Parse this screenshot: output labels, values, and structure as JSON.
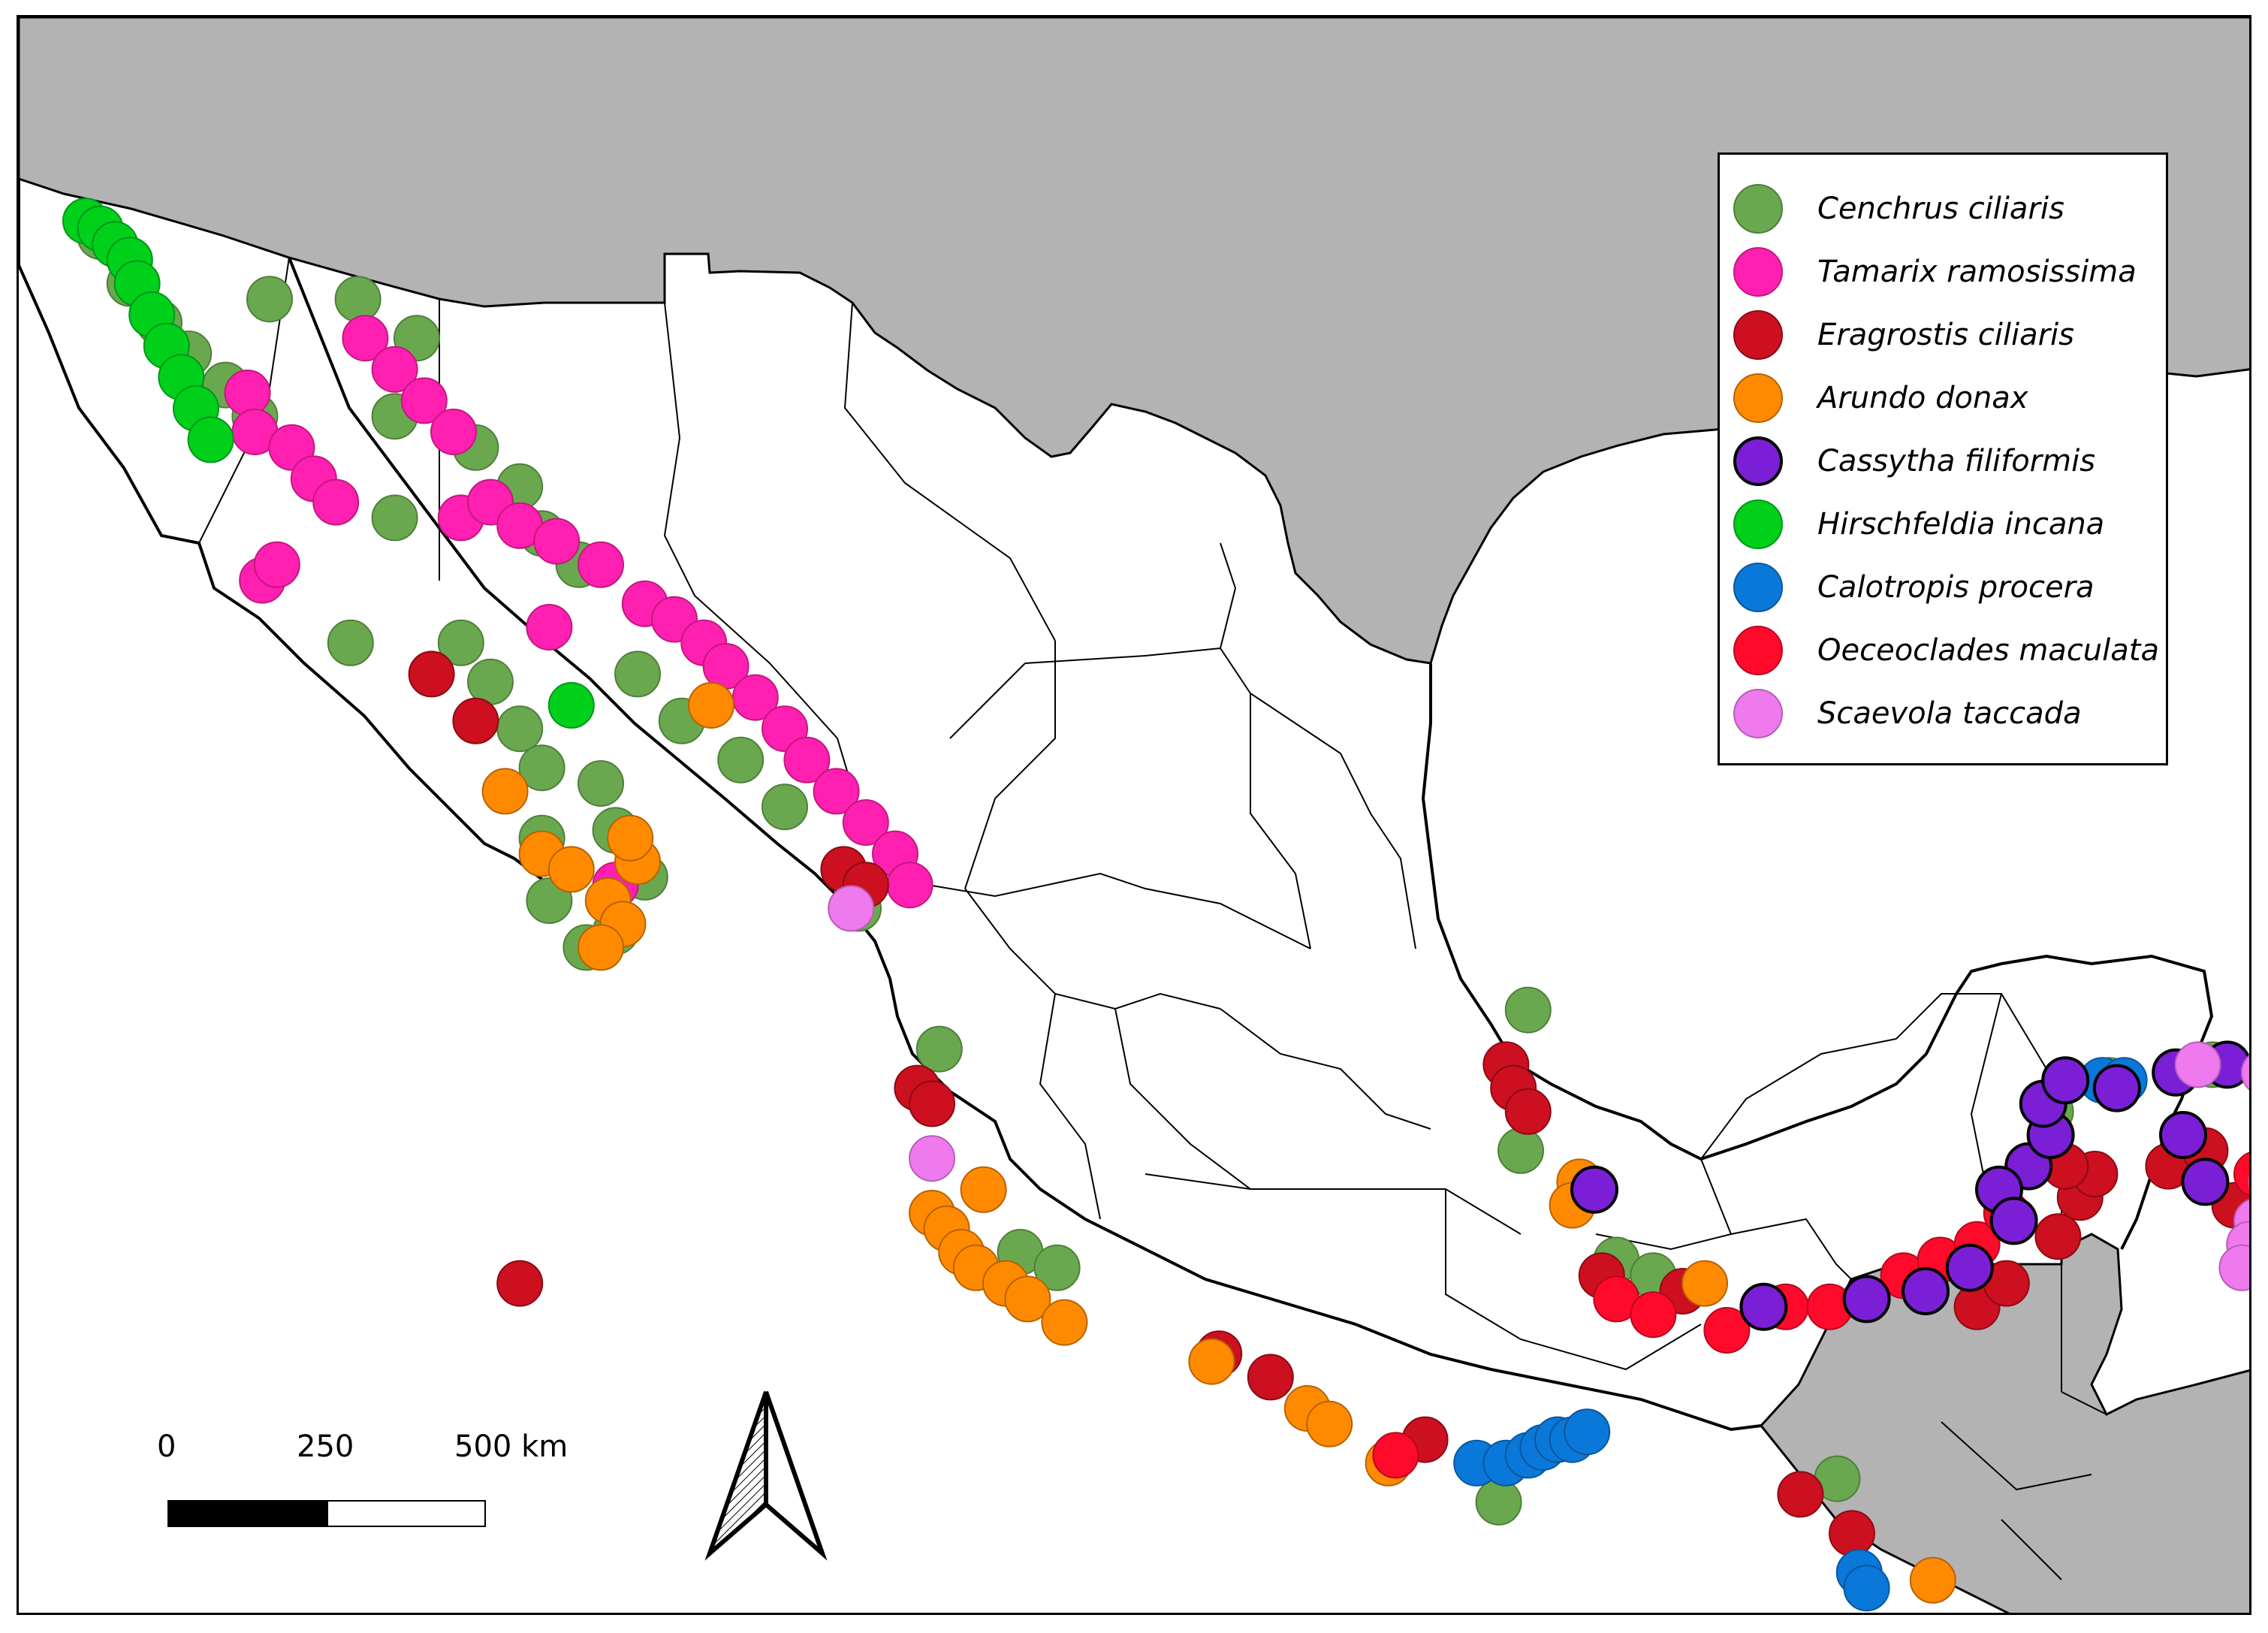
{
  "map": {
    "colors": {
      "land_other": "#b3b3b3",
      "land_mexico": "#ffffff",
      "ocean": "#ffffff",
      "borders": "#000000"
    }
  },
  "legend": {
    "items": [
      {
        "id": "cenchrus",
        "label": "Cenchrus ciliaris",
        "color": "#6aa84f",
        "stroke": "#4f7f3a"
      },
      {
        "id": "tamarix",
        "label": "Tamarix ramosissima",
        "color": "#ff1fb0",
        "stroke": "#c2187f"
      },
      {
        "id": "eragrostis",
        "label": "Eragrostis ciliaris",
        "color": "#cc1020",
        "stroke": "#8c0a14"
      },
      {
        "id": "arundo",
        "label": "Arundo donax",
        "color": "#ff8a00",
        "stroke": "#b86200"
      },
      {
        "id": "cassytha",
        "label": "Cassytha filiformis",
        "color": "#7a1fd6",
        "stroke": "#000000"
      },
      {
        "id": "hirschfeldia",
        "label": "Hirschfeldia incana",
        "color": "#00d01a",
        "stroke": "#00961a"
      },
      {
        "id": "calotropis",
        "label": "Calotropis procera",
        "color": "#0a78d8",
        "stroke": "#0857a0"
      },
      {
        "id": "oeceoclades",
        "label": "Oeceoclades maculata",
        "color": "#ff0a2a",
        "stroke": "#b80820"
      },
      {
        "id": "scaevola",
        "label": "Scaevola taccada",
        "color": "#ee7aee",
        "stroke": "#b85cb8"
      }
    ]
  },
  "scale_bar": {
    "ticks": [
      "0",
      "250",
      "500 km"
    ]
  },
  "north_arrow": {
    "icon": "north-arrow-icon"
  },
  "occurrences": {
    "cenchrus": [
      [
        -116.9,
        32.1
      ],
      [
        -116.5,
        31.5
      ],
      [
        -116.1,
        31.0
      ],
      [
        -115.7,
        30.6
      ],
      [
        -115.2,
        30.2
      ],
      [
        -114.8,
        29.8
      ],
      [
        -114.6,
        31.3
      ],
      [
        -113.4,
        31.3
      ],
      [
        -112.6,
        30.8
      ],
      [
        -112.9,
        29.8
      ],
      [
        -111.8,
        29.4
      ],
      [
        -111.2,
        28.9
      ],
      [
        -110.9,
        28.3
      ],
      [
        -110.4,
        27.9
      ],
      [
        -112.9,
        28.5
      ],
      [
        -113.5,
        26.9
      ],
      [
        -112.0,
        26.9
      ],
      [
        -111.6,
        26.4
      ],
      [
        -111.2,
        25.8
      ],
      [
        -110.9,
        25.3
      ],
      [
        -110.1,
        25.1
      ],
      [
        -109.9,
        24.5
      ],
      [
        -109.5,
        23.9
      ],
      [
        -109.9,
        23.2
      ],
      [
        -110.3,
        23.0
      ],
      [
        -110.8,
        23.6
      ],
      [
        -110.9,
        24.4
      ],
      [
        -109.6,
        26.5
      ],
      [
        -109.0,
        25.9
      ],
      [
        -108.2,
        25.4
      ],
      [
        -107.6,
        24.8
      ],
      [
        -106.6,
        23.5
      ],
      [
        -105.5,
        21.7
      ],
      [
        -104.4,
        19.1
      ],
      [
        -103.9,
        18.9
      ],
      [
        -97.5,
        22.2
      ],
      [
        -97.6,
        20.4
      ],
      [
        -96.3,
        19.0
      ],
      [
        -95.8,
        18.8
      ],
      [
        -93.3,
        16.2
      ],
      [
        -97.9,
        15.9
      ],
      [
        -86.9,
        21.5
      ],
      [
        -87.2,
        21.6
      ],
      [
        -88.2,
        21.5
      ],
      [
        -89.6,
        21.3
      ],
      [
        -90.4,
        20.9
      ]
    ],
    "tamarix": [
      [
        -114.9,
        30.1
      ],
      [
        -114.8,
        29.6
      ],
      [
        -114.3,
        29.4
      ],
      [
        -114.0,
        29.0
      ],
      [
        -113.7,
        28.7
      ],
      [
        -113.3,
        30.8
      ],
      [
        -112.9,
        30.4
      ],
      [
        -112.5,
        30.0
      ],
      [
        -112.1,
        29.6
      ],
      [
        -112.0,
        28.5
      ],
      [
        -111.6,
        28.7
      ],
      [
        -111.2,
        28.4
      ],
      [
        -110.7,
        28.2
      ],
      [
        -110.1,
        27.9
      ],
      [
        -109.5,
        27.4
      ],
      [
        -109.1,
        27.2
      ],
      [
        -108.7,
        26.9
      ],
      [
        -108.4,
        26.6
      ],
      [
        -108.0,
        26.2
      ],
      [
        -107.6,
        25.8
      ],
      [
        -107.3,
        25.4
      ],
      [
        -106.9,
        25.0
      ],
      [
        -106.5,
        24.6
      ],
      [
        -106.1,
        24.2
      ],
      [
        -105.9,
        23.8
      ],
      [
        -110.8,
        27.1
      ],
      [
        -109.9,
        23.8
      ],
      [
        -114.7,
        27.7
      ],
      [
        -114.5,
        27.9
      ]
    ],
    "eragrostis": [
      [
        -112.4,
        26.5
      ],
      [
        -111.8,
        25.9
      ],
      [
        -106.8,
        24.0
      ],
      [
        -106.5,
        23.8
      ],
      [
        -105.8,
        21.2
      ],
      [
        -105.6,
        21.0
      ],
      [
        -111.2,
        18.7
      ],
      [
        -97.8,
        21.5
      ],
      [
        -97.7,
        21.2
      ],
      [
        -97.5,
        20.9
      ],
      [
        -96.5,
        18.8
      ],
      [
        -95.4,
        18.6
      ],
      [
        -101.7,
        17.8
      ],
      [
        -101.0,
        17.5
      ],
      [
        -98.9,
        16.7
      ],
      [
        -93.8,
        16.0
      ],
      [
        -93.1,
        15.5
      ],
      [
        -91.4,
        18.4
      ],
      [
        -91.0,
        18.7
      ],
      [
        -90.3,
        19.3
      ],
      [
        -90.0,
        19.8
      ],
      [
        -89.8,
        20.1
      ],
      [
        -88.8,
        20.2
      ],
      [
        -88.3,
        20.4
      ],
      [
        -87.9,
        19.7
      ],
      [
        -87.3,
        21.1
      ],
      [
        -87.0,
        21.4
      ],
      [
        -90.2,
        20.2
      ]
    ],
    "arundo": [
      [
        -111.4,
        25.0
      ],
      [
        -110.9,
        24.2
      ],
      [
        -110.5,
        24.0
      ],
      [
        -110.0,
        23.6
      ],
      [
        -109.8,
        23.3
      ],
      [
        -110.1,
        23.0
      ],
      [
        -109.6,
        24.1
      ],
      [
        -109.7,
        24.4
      ],
      [
        -108.6,
        26.1
      ],
      [
        -104.9,
        19.9
      ],
      [
        -105.6,
        19.6
      ],
      [
        -105.4,
        19.4
      ],
      [
        -105.2,
        19.1
      ],
      [
        -105.0,
        18.9
      ],
      [
        -104.6,
        18.7
      ],
      [
        -104.3,
        18.5
      ],
      [
        -103.8,
        18.2
      ],
      [
        -101.8,
        17.7
      ],
      [
        -100.5,
        17.1
      ],
      [
        -100.2,
        16.9
      ],
      [
        -99.4,
        16.4
      ],
      [
        -95.1,
        18.7
      ],
      [
        -96.8,
        20.0
      ],
      [
        -96.9,
        19.7
      ],
      [
        -92.0,
        14.9
      ]
    ],
    "cassytha": [
      [
        -96.6,
        19.9
      ],
      [
        -94.3,
        18.4
      ],
      [
        -92.9,
        18.5
      ],
      [
        -92.1,
        18.6
      ],
      [
        -91.5,
        18.9
      ],
      [
        -90.7,
        20.2
      ],
      [
        -90.4,
        20.6
      ],
      [
        -90.5,
        21.0
      ],
      [
        -90.2,
        21.3
      ],
      [
        -89.5,
        21.2
      ],
      [
        -88.7,
        21.4
      ],
      [
        -88.0,
        21.5
      ],
      [
        -87.4,
        21.3
      ],
      [
        -87.1,
        21.2
      ],
      [
        -86.8,
        21.0
      ],
      [
        -87.0,
        20.5
      ],
      [
        -87.3,
        19.9
      ],
      [
        -87.5,
        19.4
      ],
      [
        -87.6,
        19.0
      ],
      [
        -88.3,
        20.0
      ],
      [
        -88.6,
        20.6
      ],
      [
        -91.1,
        19.9
      ],
      [
        -90.9,
        19.5
      ]
    ],
    "hirschfeldia": [
      [
        -117.1,
        32.3
      ],
      [
        -116.9,
        32.2
      ],
      [
        -116.7,
        32.0
      ],
      [
        -116.5,
        31.8
      ],
      [
        -116.4,
        31.5
      ],
      [
        -116.2,
        31.1
      ],
      [
        -116.0,
        30.7
      ],
      [
        -115.8,
        30.3
      ],
      [
        -115.6,
        29.9
      ],
      [
        -115.4,
        29.5
      ],
      [
        -110.5,
        26.1
      ]
    ],
    "calotropis": [
      [
        -98.2,
        16.4
      ],
      [
        -97.8,
        16.4
      ],
      [
        -97.5,
        16.5
      ],
      [
        -97.3,
        16.6
      ],
      [
        -97.1,
        16.7
      ],
      [
        -96.9,
        16.7
      ],
      [
        -96.7,
        16.8
      ],
      [
        -93.0,
        15.0
      ],
      [
        -92.9,
        14.8
      ],
      [
        -89.7,
        21.3
      ],
      [
        -89.4,
        21.3
      ],
      [
        -87.0,
        21.3
      ],
      [
        -86.9,
        21.1
      ]
    ],
    "oeceoclades": [
      [
        -99.3,
        16.5
      ],
      [
        -96.3,
        18.5
      ],
      [
        -95.8,
        18.3
      ],
      [
        -94.8,
        18.1
      ],
      [
        -94.0,
        18.4
      ],
      [
        -93.4,
        18.4
      ],
      [
        -92.4,
        18.8
      ],
      [
        -91.9,
        19.0
      ],
      [
        -91.4,
        19.2
      ],
      [
        -91.0,
        19.6
      ],
      [
        -87.6,
        20.1
      ],
      [
        -87.3,
        20.5
      ]
    ],
    "scaevola": [
      [
        -106.7,
        23.5
      ],
      [
        -105.6,
        20.3
      ],
      [
        -88.4,
        21.5
      ],
      [
        -87.5,
        21.4
      ],
      [
        -87.1,
        21.1
      ],
      [
        -86.9,
        20.9
      ],
      [
        -87.0,
        20.6
      ],
      [
        -87.2,
        20.3
      ],
      [
        -87.4,
        20.0
      ],
      [
        -87.6,
        19.5
      ],
      [
        -87.7,
        19.2
      ],
      [
        -87.8,
        18.9
      ]
    ]
  }
}
